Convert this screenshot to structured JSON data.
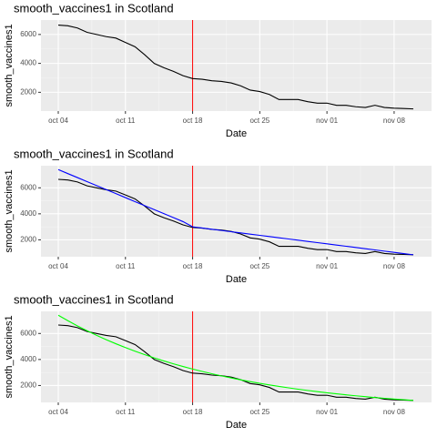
{
  "chart_data": [
    {
      "type": "line",
      "title": "smooth_vaccines1 in Scotland",
      "x_label": "Date",
      "y_label": "smooth_vaccines1",
      "categories": [
        "oct 04",
        null,
        null,
        null,
        null,
        null,
        null,
        "oct 11",
        null,
        null,
        null,
        null,
        null,
        null,
        "oct 18",
        null,
        null,
        null,
        null,
        null,
        null,
        "oct 25",
        null,
        null,
        null,
        null,
        null,
        null,
        "nov 01",
        null,
        null,
        null,
        null,
        null,
        null,
        "nov 08",
        null,
        null
      ],
      "series": [
        {
          "color": "#000000",
          "values": [
            6650,
            6600,
            6450,
            6150,
            6000,
            5850,
            5750,
            5450,
            5150,
            4600,
            4000,
            3700,
            3450,
            3150,
            2950,
            2900,
            2800,
            2750,
            2650,
            2450,
            2150,
            2050,
            1850,
            1500,
            1500,
            1500,
            1350,
            1250,
            1250,
            1100,
            1100,
            1000,
            950,
            1100,
            950,
            900,
            880,
            850
          ]
        }
      ],
      "vline": {
        "x": "oct 18",
        "color": "#ff0000"
      },
      "ylim": [
        700,
        7000
      ],
      "yticks": [
        2000,
        4000,
        6000
      ],
      "grid": true
    },
    {
      "type": "line",
      "title": "smooth_vaccines1 in Scotland",
      "x_label": "Date",
      "y_label": "smooth_vaccines1",
      "categories": [
        "oct 04",
        null,
        null,
        null,
        null,
        null,
        null,
        "oct 11",
        null,
        null,
        null,
        null,
        null,
        null,
        "oct 18",
        null,
        null,
        null,
        null,
        null,
        null,
        "oct 25",
        null,
        null,
        null,
        null,
        null,
        null,
        "nov 01",
        null,
        null,
        null,
        null,
        null,
        null,
        "nov 08",
        null,
        null
      ],
      "series": [
        {
          "color": "#000000",
          "values": [
            6650,
            6600,
            6450,
            6150,
            6000,
            5850,
            5750,
            5450,
            5150,
            4600,
            4000,
            3700,
            3450,
            3150,
            2950,
            2900,
            2800,
            2750,
            2650,
            2450,
            2150,
            2050,
            1850,
            1500,
            1500,
            1500,
            1350,
            1250,
            1250,
            1100,
            1100,
            1000,
            950,
            1100,
            950,
            900,
            880,
            850
          ]
        },
        {
          "color": "#0000ff",
          "values": [
            7400,
            7092,
            6785,
            6477,
            6169,
            5862,
            5554,
            5246,
            4938,
            4631,
            4323,
            4015,
            3708,
            3400,
            3000,
            2907,
            2813,
            2720,
            2626,
            2533,
            2439,
            2346,
            2252,
            2159,
            2065,
            1972,
            1878,
            1785,
            1691,
            1598,
            1504,
            1411,
            1317,
            1224,
            1130,
            1037,
            943,
            850
          ]
        }
      ],
      "vline": {
        "x": "oct 18",
        "color": "#ff0000"
      },
      "ylim": [
        700,
        7700
      ],
      "yticks": [
        2000,
        4000,
        6000
      ],
      "grid": true
    },
    {
      "type": "line",
      "title": "smooth_vaccines1 in Scotland",
      "x_label": "Date",
      "y_label": "smooth_vaccines1",
      "categories": [
        "oct 04",
        null,
        null,
        null,
        null,
        null,
        null,
        "oct 11",
        null,
        null,
        null,
        null,
        null,
        null,
        "oct 18",
        null,
        null,
        null,
        null,
        null,
        null,
        "oct 25",
        null,
        null,
        null,
        null,
        null,
        null,
        "nov 01",
        null,
        null,
        null,
        null,
        null,
        null,
        "nov 08",
        null,
        null
      ],
      "series": [
        {
          "color": "#000000",
          "values": [
            6650,
            6600,
            6450,
            6150,
            6000,
            5850,
            5750,
            5450,
            5150,
            4600,
            4000,
            3700,
            3450,
            3150,
            2950,
            2900,
            2800,
            2750,
            2650,
            2450,
            2150,
            2050,
            1850,
            1500,
            1500,
            1500,
            1350,
            1250,
            1250,
            1100,
            1100,
            1000,
            950,
            1100,
            950,
            900,
            880,
            850
          ]
        },
        {
          "color": "#00ff00",
          "values": [
            7400,
            6980,
            6583,
            6210,
            5857,
            5525,
            5211,
            4915,
            4636,
            4373,
            4124,
            3890,
            3669,
            3461,
            3264,
            3079,
            2904,
            2739,
            2584,
            2437,
            2299,
            2168,
            2045,
            1929,
            1819,
            1716,
            1619,
            1527,
            1440,
            1358,
            1281,
            1208,
            1140,
            1075,
            1014,
            956,
            902,
            851
          ]
        }
      ],
      "vline": {
        "x": "oct 18",
        "color": "#ff0000"
      },
      "ylim": [
        700,
        7700
      ],
      "yticks": [
        2000,
        4000,
        6000
      ],
      "grid": true
    }
  ]
}
